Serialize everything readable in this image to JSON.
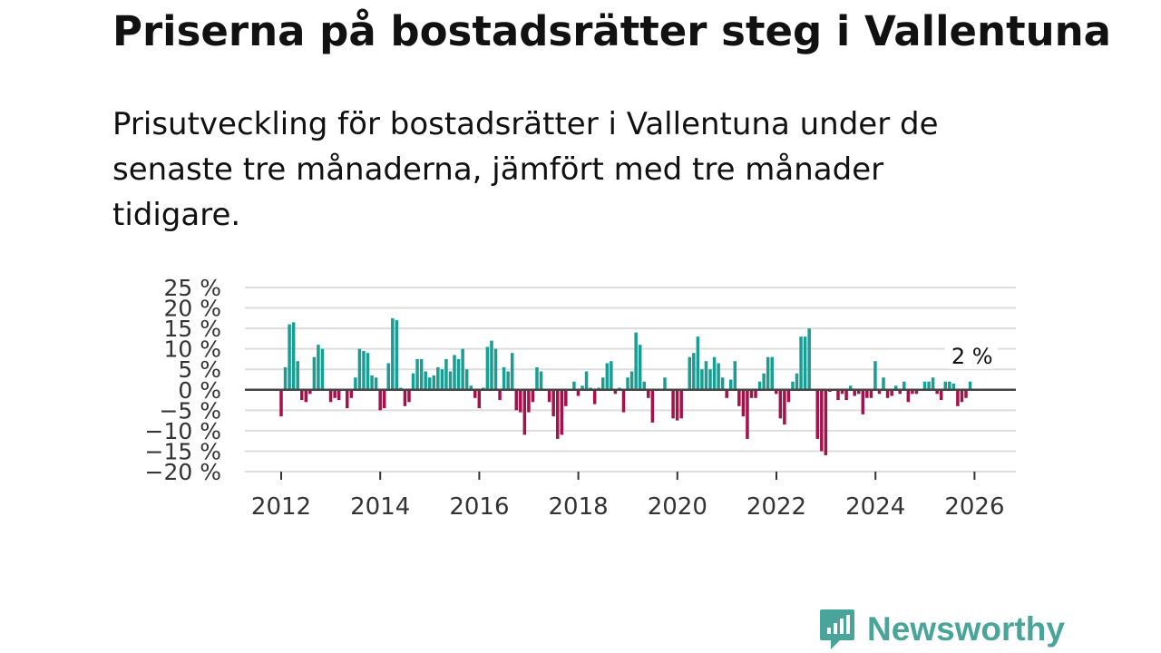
{
  "title": "Priserna på bostadsrätter steg i Vallentuna",
  "subtitle": "Prisutveckling för bostadsrätter i Vallentuna under de senaste tre månaderna, jämfört med tre månader tidigare.",
  "brand": {
    "name": "Newsworthy",
    "icon": "newsworthy-logo-icon"
  },
  "colors": {
    "positive": "#1a9e93",
    "negative": "#a3124a",
    "zero_line": "#444444",
    "grid": "#dddddd",
    "brand": "#49a59a"
  },
  "chart_data": {
    "type": "bar",
    "title": "Priserna på bostadsrätter steg i Vallentuna",
    "xlabel": "",
    "ylabel": "",
    "ylim": [
      -20,
      25
    ],
    "y_ticks": [
      25,
      20,
      15,
      10,
      5,
      0,
      -5,
      -10,
      -15,
      -20
    ],
    "y_tick_labels": [
      "25 %",
      "20 %",
      "15 %",
      "10 %",
      "5 %",
      "0 %",
      "−5 %",
      "−10 %",
      "−15 %",
      "−20 %"
    ],
    "x_ticks": [
      2012,
      2014,
      2016,
      2018,
      2020,
      2022,
      2024,
      2026
    ],
    "x_tick_labels": [
      "2012",
      "2014",
      "2016",
      "2018",
      "2020",
      "2022",
      "2024",
      "2026"
    ],
    "x_unit": "year",
    "annotation": {
      "text": "2 %",
      "year": 2026.08,
      "value": 2
    },
    "start_year": 2012.0,
    "step_years": 0.0833,
    "values": [
      -6.5,
      5.5,
      16,
      16.5,
      7,
      -2.5,
      -3,
      -1,
      8,
      11,
      10,
      0,
      -3,
      -2,
      -2.5,
      0,
      -4.5,
      -2,
      3,
      10,
      9.5,
      9,
      3.5,
      3,
      -5,
      -4.5,
      6.5,
      17.5,
      17,
      0.5,
      -4,
      -3,
      4,
      7.5,
      7.5,
      4.5,
      3,
      3.5,
      5.5,
      5,
      7.5,
      4.5,
      8.5,
      7.5,
      10,
      5,
      1,
      -2,
      -4.5,
      0.5,
      10.5,
      12,
      10,
      -2.5,
      5.5,
      4.5,
      9,
      -5,
      -5.5,
      -11,
      -5.5,
      -3,
      5.5,
      4.5,
      0,
      -3,
      -6.5,
      -12,
      -11,
      -4,
      0,
      2,
      -1.5,
      1,
      4.5,
      0.5,
      -3.5,
      0.5,
      3,
      6.5,
      7,
      -1,
      0.5,
      -5.5,
      3,
      4.5,
      14,
      11,
      2,
      -2,
      -8,
      0,
      0,
      3,
      0,
      -7,
      -7.5,
      -7,
      0,
      8,
      9,
      13,
      5,
      7,
      5,
      8,
      6.5,
      3,
      -2,
      2.5,
      7,
      -4,
      -6.5,
      -12,
      -2,
      -2,
      2,
      4,
      8,
      8,
      -1,
      -7,
      -8.5,
      -3,
      2,
      4,
      13,
      13,
      15,
      0,
      -12,
      -15,
      -16,
      -0.5,
      0,
      -2.5,
      -1,
      -2.5,
      1,
      -1.5,
      -1,
      -6,
      -2,
      -2,
      7,
      -1,
      3,
      -2,
      -1.5,
      1,
      -1,
      2,
      -3,
      -1,
      -1,
      0,
      2,
      2,
      3,
      -1,
      -2.5,
      2,
      2,
      1.5,
      -4,
      -3,
      -2,
      2
    ]
  }
}
